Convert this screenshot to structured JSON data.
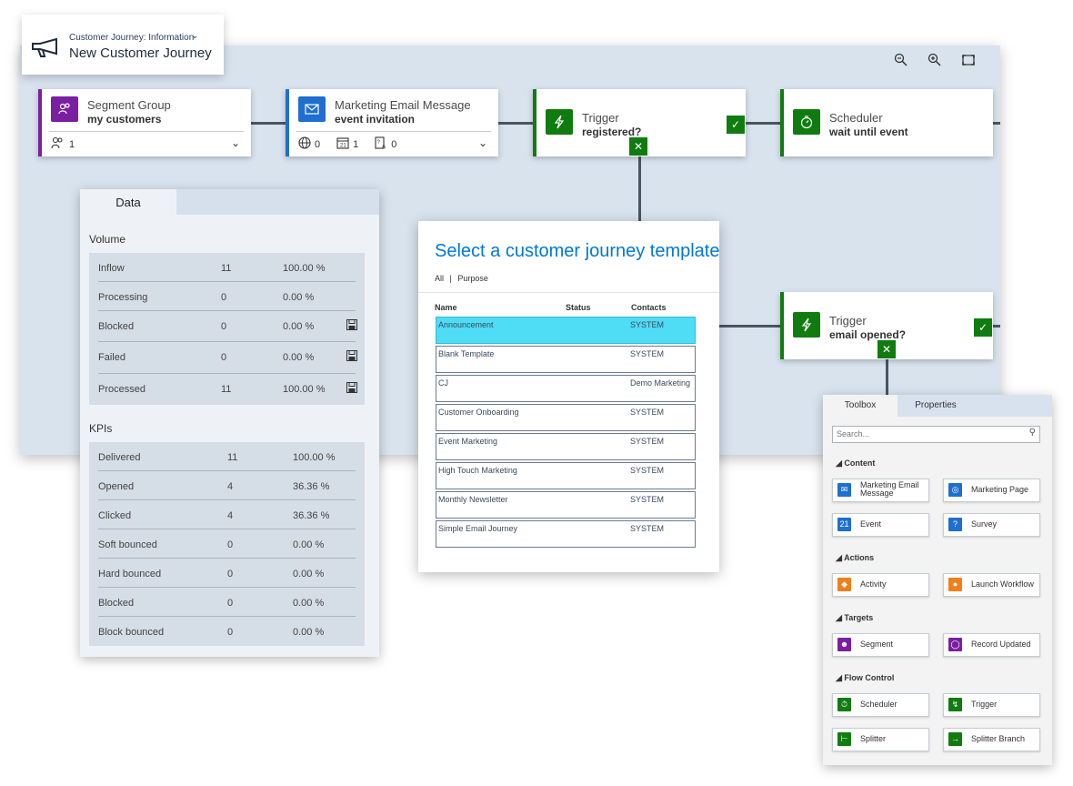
{
  "header": {
    "entity_label": "Customer Journey: Information",
    "title": "New Customer Journey",
    "megaphone_icon": "megaphone-icon",
    "chevron_icon": "chevron-down-icon"
  },
  "zoom": {
    "zoom_out_icon": "zoom-out-icon",
    "zoom_in_icon": "zoom-in-icon",
    "fit_icon": "fit-to-screen-icon"
  },
  "tiles": {
    "segment": {
      "type": "Segment Group",
      "name": "my customers",
      "count": "1",
      "accent": "#7b1fa2"
    },
    "email": {
      "type": "Marketing Email Message",
      "name": "event invitation",
      "count_web": "0",
      "count_event": "1",
      "count_survey": "0",
      "accent": "#1e6fd0"
    },
    "trigger1": {
      "type": "Trigger",
      "name": "registered?",
      "accent": "#107c10"
    },
    "scheduler": {
      "type": "Scheduler",
      "name": "wait until event",
      "accent": "#107c10"
    },
    "trigger2": {
      "type": "Trigger",
      "name": "email opened?",
      "accent": "#107c10"
    }
  },
  "data_panel": {
    "tab": "Data",
    "volume_label": "Volume",
    "volume": [
      {
        "label": "Inflow",
        "count": "11",
        "pct": "100.00 %",
        "save": false
      },
      {
        "label": "Processing",
        "count": "0",
        "pct": "0.00 %",
        "save": false
      },
      {
        "label": "Blocked",
        "count": "0",
        "pct": "0.00 %",
        "save": true
      },
      {
        "label": "Failed",
        "count": "0",
        "pct": "0.00 %",
        "save": true
      },
      {
        "label": "Processed",
        "count": "11",
        "pct": "100.00 %",
        "save": true
      }
    ],
    "kpi_label": "KPIs",
    "kpis": [
      {
        "label": "Delivered",
        "count": "11",
        "pct": "100.00 %"
      },
      {
        "label": "Opened",
        "count": "4",
        "pct": "36.36 %"
      },
      {
        "label": "Clicked",
        "count": "4",
        "pct": "36.36 %"
      },
      {
        "label": "Soft bounced",
        "count": "0",
        "pct": "0.00 %"
      },
      {
        "label": "Hard bounced",
        "count": "0",
        "pct": "0.00 %"
      },
      {
        "label": "Blocked",
        "count": "0",
        "pct": "0.00 %"
      },
      {
        "label": "Block bounced",
        "count": "0",
        "pct": "0.00 %"
      }
    ]
  },
  "template_panel": {
    "title": "Select a customer journey template",
    "filter_all": "All",
    "filter_sep": "|",
    "filter_purpose": "Purpose",
    "col_name": "Name",
    "col_status": "Status",
    "col_contacts": "Contacts",
    "rows": [
      {
        "name": "Announcement",
        "contacts": "SYSTEM",
        "selected": true
      },
      {
        "name": "Blank Template",
        "contacts": "SYSTEM",
        "selected": false
      },
      {
        "name": "CJ",
        "contacts": "Demo Marketing",
        "selected": false
      },
      {
        "name": "Customer Onboarding",
        "contacts": "SYSTEM",
        "selected": false
      },
      {
        "name": "Event Marketing",
        "contacts": "SYSTEM",
        "selected": false
      },
      {
        "name": "High Touch Marketing",
        "contacts": "SYSTEM",
        "selected": false
      },
      {
        "name": "Monthly Newsletter",
        "contacts": "SYSTEM",
        "selected": false
      },
      {
        "name": "Simple Email Journey",
        "contacts": "SYSTEM",
        "selected": false
      }
    ]
  },
  "toolbox": {
    "tab_toolbox": "Toolbox",
    "tab_properties": "Properties",
    "search_placeholder": "Search...",
    "cat_content": "Content",
    "cat_actions": "Actions",
    "cat_targets": "Targets",
    "cat_flow": "Flow Control",
    "items": {
      "email": {
        "line1": "Marketing Email",
        "line2": "Message",
        "color": "#1e6fd0"
      },
      "page": {
        "label": "Marketing Page",
        "color": "#1e6fd0"
      },
      "event": {
        "label": "Event",
        "color": "#1e6fd0"
      },
      "survey": {
        "label": "Survey",
        "color": "#1e6fd0"
      },
      "activity": {
        "label": "Activity",
        "color": "#f07f19"
      },
      "workflow": {
        "label": "Launch Workflow",
        "color": "#f07f19"
      },
      "segment": {
        "label": "Segment",
        "color": "#7b1fa2"
      },
      "record": {
        "label": "Record Updated",
        "color": "#7b1fa2"
      },
      "scheduler": {
        "label": "Scheduler",
        "color": "#107c10"
      },
      "trigger": {
        "label": "Trigger",
        "color": "#107c10"
      },
      "splitter": {
        "label": "Splitter",
        "color": "#107c10"
      },
      "branch": {
        "label": "Splitter Branch",
        "color": "#107c10"
      }
    }
  }
}
